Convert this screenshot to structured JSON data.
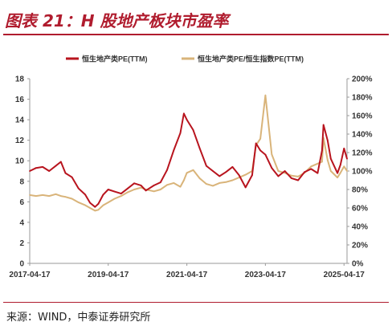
{
  "header": {
    "title": "图表 21：H 股地产板块市盈率"
  },
  "footer": {
    "source": "来源：WIND，中泰证券研究所"
  },
  "colors": {
    "accent": "#b01c2e",
    "series_pe": "#b8141e",
    "series_rel": "#d9b47a"
  },
  "chart_data": {
    "type": "line",
    "x_tick_labels": [
      "2017-04-17",
      "2019-04-17",
      "2021-04-17",
      "2023-04-17",
      "2025-04-17"
    ],
    "x_range": [
      "2017-04-17",
      "2025-05-15"
    ],
    "ylim_left": [
      0,
      18
    ],
    "y_ticks_left": [
      "0",
      "2",
      "4",
      "6",
      "8",
      "10",
      "12",
      "14",
      "16",
      "18"
    ],
    "ylim_right": [
      0,
      200
    ],
    "y_ticks_right": [
      "0%",
      "20%",
      "40%",
      "60%",
      "80%",
      "100%",
      "120%",
      "140%",
      "160%",
      "180%",
      "200%"
    ],
    "grid": false,
    "legend_position": "top",
    "series": [
      {
        "name": "恒生地产类PE(TTM)",
        "axis": "left",
        "points": [
          [
            "2017-04-17",
            9.0
          ],
          [
            "2017-06-15",
            9.3
          ],
          [
            "2017-08-15",
            9.4
          ],
          [
            "2017-10-15",
            9.0
          ],
          [
            "2017-12-15",
            9.5
          ],
          [
            "2018-02-01",
            9.9
          ],
          [
            "2018-03-15",
            8.8
          ],
          [
            "2018-05-15",
            8.4
          ],
          [
            "2018-07-15",
            7.3
          ],
          [
            "2018-09-15",
            6.7
          ],
          [
            "2018-10-30",
            5.9
          ],
          [
            "2018-12-15",
            5.5
          ],
          [
            "2019-01-15",
            5.8
          ],
          [
            "2019-03-01",
            6.7
          ],
          [
            "2019-04-17",
            7.2
          ],
          [
            "2019-06-15",
            7.0
          ],
          [
            "2019-08-15",
            6.8
          ],
          [
            "2019-10-15",
            7.3
          ],
          [
            "2019-12-15",
            7.8
          ],
          [
            "2020-02-15",
            7.6
          ],
          [
            "2020-04-01",
            7.1
          ],
          [
            "2020-06-15",
            7.6
          ],
          [
            "2020-08-15",
            7.9
          ],
          [
            "2020-10-15",
            9.1
          ],
          [
            "2020-12-15",
            11.0
          ],
          [
            "2021-02-15",
            12.7
          ],
          [
            "2021-03-20",
            14.6
          ],
          [
            "2021-04-17",
            14.0
          ],
          [
            "2021-06-15",
            13.0
          ],
          [
            "2021-08-15",
            11.2
          ],
          [
            "2021-10-15",
            9.5
          ],
          [
            "2021-12-15",
            9.0
          ],
          [
            "2022-02-15",
            8.5
          ],
          [
            "2022-04-15",
            8.9
          ],
          [
            "2022-06-15",
            9.4
          ],
          [
            "2022-08-15",
            8.6
          ],
          [
            "2022-10-15",
            7.4
          ],
          [
            "2022-12-15",
            8.6
          ],
          [
            "2023-01-20",
            11.7
          ],
          [
            "2023-03-01",
            11.0
          ],
          [
            "2023-04-17",
            10.6
          ],
          [
            "2023-06-15",
            9.3
          ],
          [
            "2023-08-15",
            8.5
          ],
          [
            "2023-10-15",
            9.0
          ],
          [
            "2023-12-15",
            8.3
          ],
          [
            "2024-02-15",
            8.1
          ],
          [
            "2024-04-15",
            8.9
          ],
          [
            "2024-06-15",
            9.2
          ],
          [
            "2024-08-15",
            8.8
          ],
          [
            "2024-09-25",
            11.0
          ],
          [
            "2024-10-08",
            13.5
          ],
          [
            "2024-11-15",
            12.0
          ],
          [
            "2024-12-15",
            10.2
          ],
          [
            "2025-02-15",
            8.8
          ],
          [
            "2025-03-15",
            9.6
          ],
          [
            "2025-04-17",
            11.2
          ],
          [
            "2025-05-15",
            10.2
          ]
        ]
      },
      {
        "name": "恒生地产类PE/恒生指数PE(TTM)",
        "axis": "right",
        "points": [
          [
            "2017-04-17",
            74
          ],
          [
            "2017-06-15",
            73
          ],
          [
            "2017-08-15",
            74
          ],
          [
            "2017-10-15",
            73
          ],
          [
            "2017-12-15",
            75
          ],
          [
            "2018-02-01",
            73
          ],
          [
            "2018-03-15",
            72
          ],
          [
            "2018-05-15",
            70
          ],
          [
            "2018-07-15",
            66
          ],
          [
            "2018-09-15",
            63
          ],
          [
            "2018-10-30",
            60
          ],
          [
            "2018-12-15",
            57
          ],
          [
            "2019-01-15",
            58
          ],
          [
            "2019-03-01",
            63
          ],
          [
            "2019-04-17",
            66
          ],
          [
            "2019-06-15",
            70
          ],
          [
            "2019-08-15",
            73
          ],
          [
            "2019-10-15",
            77
          ],
          [
            "2019-12-15",
            80
          ],
          [
            "2020-02-15",
            82
          ],
          [
            "2020-04-01",
            80
          ],
          [
            "2020-06-15",
            78
          ],
          [
            "2020-08-15",
            80
          ],
          [
            "2020-10-15",
            85
          ],
          [
            "2020-12-15",
            87
          ],
          [
            "2021-02-15",
            83
          ],
          [
            "2021-03-20",
            90
          ],
          [
            "2021-04-17",
            98
          ],
          [
            "2021-06-15",
            101
          ],
          [
            "2021-08-15",
            92
          ],
          [
            "2021-10-15",
            86
          ],
          [
            "2021-12-15",
            84
          ],
          [
            "2022-02-15",
            87
          ],
          [
            "2022-04-15",
            88
          ],
          [
            "2022-06-15",
            90
          ],
          [
            "2022-08-15",
            93
          ],
          [
            "2022-10-15",
            96
          ],
          [
            "2022-12-15",
            100
          ],
          [
            "2023-01-20",
            128
          ],
          [
            "2023-03-01",
            135
          ],
          [
            "2023-04-17",
            182
          ],
          [
            "2023-06-15",
            118
          ],
          [
            "2023-08-15",
            100
          ],
          [
            "2023-10-15",
            98
          ],
          [
            "2023-12-15",
            95
          ],
          [
            "2024-02-15",
            94
          ],
          [
            "2024-04-15",
            98
          ],
          [
            "2024-06-15",
            105
          ],
          [
            "2024-08-15",
            108
          ],
          [
            "2024-09-25",
            110
          ],
          [
            "2024-10-08",
            136
          ],
          [
            "2024-11-15",
            112
          ],
          [
            "2024-12-15",
            100
          ],
          [
            "2025-02-15",
            93
          ],
          [
            "2025-03-15",
            98
          ],
          [
            "2025-04-17",
            105
          ],
          [
            "2025-05-15",
            100
          ]
        ]
      }
    ]
  }
}
